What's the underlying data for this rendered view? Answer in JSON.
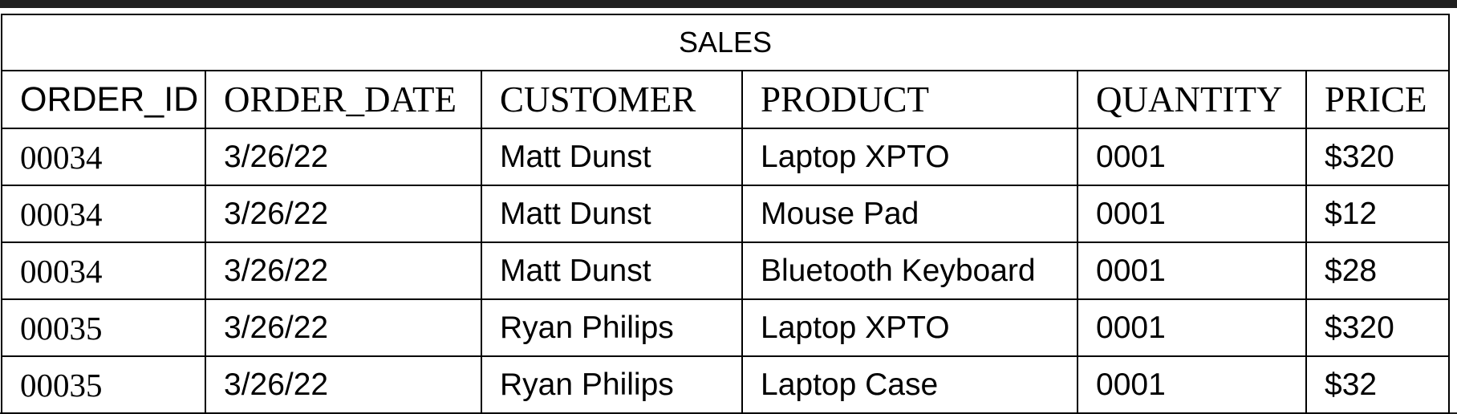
{
  "table": {
    "title": "SALES",
    "columns": [
      "ORDER_ID",
      "ORDER_DATE",
      "CUSTOMER",
      "PRODUCT",
      "QUANTITY",
      "PRICE"
    ],
    "rows": [
      [
        "00034",
        "3/26/22",
        "Matt Dunst",
        "Laptop XPTO",
        "0001",
        "$320"
      ],
      [
        "00034",
        "3/26/22",
        "Matt Dunst",
        "Mouse Pad",
        "0001",
        "$12"
      ],
      [
        "00034",
        "3/26/22",
        "Matt Dunst",
        "Bluetooth Keyboard",
        "0001",
        "$28"
      ],
      [
        "00035",
        "3/26/22",
        "Ryan Philips",
        "Laptop XPTO",
        "0001",
        "$320"
      ],
      [
        "00035",
        "3/26/22",
        "Ryan Philips",
        "Laptop Case",
        "0001",
        "$32"
      ]
    ]
  }
}
